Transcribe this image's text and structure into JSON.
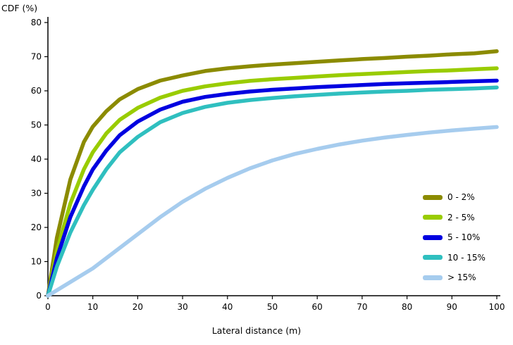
{
  "chart_data": {
    "type": "line",
    "title": "",
    "xlabel": "Lateral distance (m)",
    "ylabel": "CDF (%)",
    "xlim": [
      0,
      100
    ],
    "ylim": [
      0,
      80
    ],
    "xticks": [
      0,
      10,
      20,
      30,
      40,
      50,
      60,
      70,
      80,
      90,
      100
    ],
    "yticks": [
      0,
      10,
      20,
      30,
      40,
      50,
      60,
      70,
      80
    ],
    "grid": false,
    "legend_position": "lower right",
    "series": [
      {
        "name": "0 - 2%",
        "color": "#8B8B00",
        "points": [
          [
            0,
            0
          ],
          [
            2,
            17
          ],
          [
            5,
            34
          ],
          [
            8,
            45
          ],
          [
            10,
            49.5
          ],
          [
            13,
            54
          ],
          [
            16,
            57.5
          ],
          [
            20,
            60.5
          ],
          [
            25,
            63
          ],
          [
            30,
            64.5
          ],
          [
            35,
            65.8
          ],
          [
            40,
            66.6
          ],
          [
            45,
            67.2
          ],
          [
            50,
            67.7
          ],
          [
            55,
            68.1
          ],
          [
            60,
            68.5
          ],
          [
            65,
            68.9
          ],
          [
            70,
            69.3
          ],
          [
            75,
            69.6
          ],
          [
            80,
            70
          ],
          [
            85,
            70.3
          ],
          [
            90,
            70.7
          ],
          [
            95,
            71
          ],
          [
            100,
            71.6
          ]
        ]
      },
      {
        "name": "2 - 5%",
        "color": "#99CC00",
        "points": [
          [
            0,
            0
          ],
          [
            2,
            13
          ],
          [
            5,
            27
          ],
          [
            8,
            37
          ],
          [
            10,
            42
          ],
          [
            13,
            47.5
          ],
          [
            16,
            51.5
          ],
          [
            20,
            55
          ],
          [
            25,
            58
          ],
          [
            30,
            60
          ],
          [
            35,
            61.3
          ],
          [
            40,
            62.2
          ],
          [
            45,
            62.9
          ],
          [
            50,
            63.4
          ],
          [
            55,
            63.8
          ],
          [
            60,
            64.2
          ],
          [
            65,
            64.6
          ],
          [
            70,
            64.9
          ],
          [
            75,
            65.2
          ],
          [
            80,
            65.5
          ],
          [
            85,
            65.8
          ],
          [
            90,
            66
          ],
          [
            95,
            66.3
          ],
          [
            100,
            66.6
          ]
        ]
      },
      {
        "name": "5 - 10%",
        "color": "#0000E0",
        "points": [
          [
            0,
            0
          ],
          [
            2,
            11
          ],
          [
            5,
            23
          ],
          [
            8,
            32
          ],
          [
            10,
            37
          ],
          [
            13,
            42.5
          ],
          [
            16,
            47
          ],
          [
            20,
            51
          ],
          [
            25,
            54.5
          ],
          [
            30,
            56.8
          ],
          [
            35,
            58.2
          ],
          [
            40,
            59.1
          ],
          [
            45,
            59.8
          ],
          [
            50,
            60.3
          ],
          [
            55,
            60.7
          ],
          [
            60,
            61.1
          ],
          [
            65,
            61.4
          ],
          [
            70,
            61.7
          ],
          [
            75,
            62
          ],
          [
            80,
            62.2
          ],
          [
            85,
            62.4
          ],
          [
            90,
            62.6
          ],
          [
            95,
            62.8
          ],
          [
            100,
            63
          ]
        ]
      },
      {
        "name": "10 - 15%",
        "color": "#2FBFBF",
        "points": [
          [
            0,
            0
          ],
          [
            2,
            8.5
          ],
          [
            5,
            18.5
          ],
          [
            8,
            26.5
          ],
          [
            10,
            31
          ],
          [
            13,
            37
          ],
          [
            16,
            42
          ],
          [
            20,
            46.5
          ],
          [
            25,
            50.8
          ],
          [
            30,
            53.5
          ],
          [
            35,
            55.3
          ],
          [
            40,
            56.5
          ],
          [
            45,
            57.3
          ],
          [
            50,
            57.9
          ],
          [
            55,
            58.4
          ],
          [
            60,
            58.8
          ],
          [
            65,
            59.2
          ],
          [
            70,
            59.5
          ],
          [
            75,
            59.8
          ],
          [
            80,
            60
          ],
          [
            85,
            60.3
          ],
          [
            90,
            60.5
          ],
          [
            95,
            60.7
          ],
          [
            100,
            61
          ]
        ]
      },
      {
        "name": "> 15%",
        "color": "#A6CCEE",
        "points": [
          [
            0,
            0
          ],
          [
            5,
            4
          ],
          [
            10,
            8
          ],
          [
            15,
            13
          ],
          [
            20,
            18
          ],
          [
            25,
            23
          ],
          [
            30,
            27.5
          ],
          [
            35,
            31.3
          ],
          [
            40,
            34.5
          ],
          [
            45,
            37.3
          ],
          [
            50,
            39.6
          ],
          [
            55,
            41.5
          ],
          [
            60,
            43
          ],
          [
            65,
            44.3
          ],
          [
            70,
            45.4
          ],
          [
            75,
            46.3
          ],
          [
            80,
            47.1
          ],
          [
            85,
            47.8
          ],
          [
            90,
            48.4
          ],
          [
            95,
            48.9
          ],
          [
            100,
            49.4
          ]
        ]
      }
    ]
  }
}
